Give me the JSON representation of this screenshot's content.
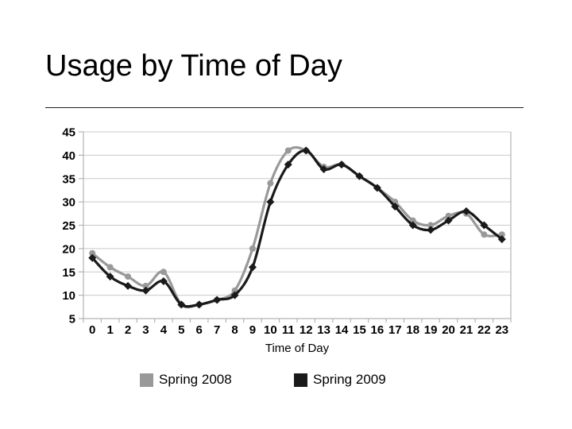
{
  "slide": {
    "title": "Usage by Time of Day"
  },
  "chart_data": {
    "type": "line",
    "title": "",
    "xlabel": "Time of Day",
    "ylabel": "",
    "x": [
      0,
      1,
      2,
      3,
      4,
      5,
      6,
      7,
      8,
      9,
      10,
      11,
      12,
      13,
      14,
      15,
      16,
      17,
      18,
      19,
      20,
      21,
      22,
      23
    ],
    "series": [
      {
        "name": "Spring 2008",
        "color": "#999999",
        "marker": "circle",
        "values": [
          19,
          16,
          14,
          12,
          15,
          8,
          8,
          9,
          11,
          20,
          34,
          41,
          41,
          37.5,
          38,
          35.5,
          33,
          30,
          26,
          25,
          27,
          27.5,
          23,
          23
        ]
      },
      {
        "name": "Spring 2009",
        "color": "#1a1a1a",
        "marker": "diamond",
        "values": [
          18,
          14,
          12,
          11,
          13,
          8,
          8,
          9,
          10,
          16,
          30,
          38,
          41,
          37,
          38,
          35.5,
          33,
          29,
          25,
          24,
          26,
          28,
          25,
          22
        ]
      }
    ],
    "ylim": [
      5,
      45
    ],
    "ytick_step": 5,
    "grid": true,
    "legend_position": "bottom"
  }
}
